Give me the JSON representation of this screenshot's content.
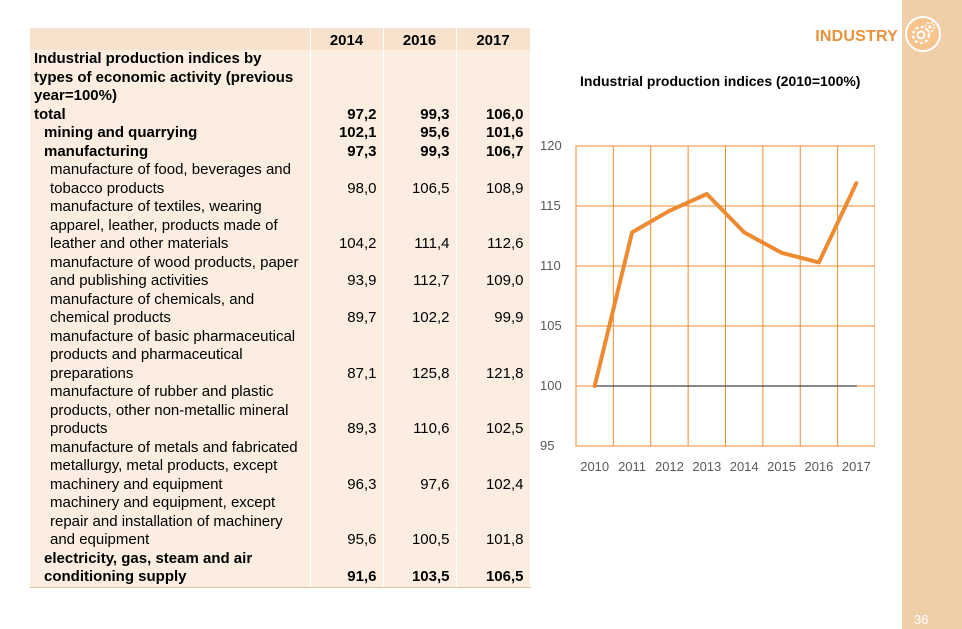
{
  "header": {
    "section_label": "INDUSTRY",
    "page_number": "36"
  },
  "icons": {
    "section_icon": "gear-icon"
  },
  "colors": {
    "accent": "#ed8b33",
    "sideband": "#f0cfa8",
    "table_bg": "#fbeee0",
    "baseline": "#404040"
  },
  "table": {
    "columns": [
      "",
      "2014",
      "2016",
      "2017"
    ],
    "heading": "Industrial production indices by types of economic activity (previous year=100%)",
    "rows": [
      {
        "label": "total",
        "values": [
          "97,2",
          "99,3",
          "106,0"
        ],
        "bold": true
      },
      {
        "label": "mining and quarrying",
        "values": [
          "102,1",
          "95,6",
          "101,6"
        ],
        "bold": true
      },
      {
        "label": "manufacturing",
        "values": [
          "97,3",
          "99,3",
          "106,7"
        ],
        "bold": true
      },
      {
        "label": "manufacture of food, beverages and tobacco products",
        "values": [
          "98,0",
          "106,5",
          "108,9"
        ],
        "bold": false
      },
      {
        "label": "manufacture of textiles, wearing apparel, leather, products made of leather and other materials",
        "values": [
          "104,2",
          "111,4",
          "112,6"
        ],
        "bold": false
      },
      {
        "label": "manufacture of wood products, paper and publishing activities",
        "values": [
          "93,9",
          "112,7",
          "109,0"
        ],
        "bold": false
      },
      {
        "label": "manufacture of chemicals, and chemical products",
        "values": [
          "89,7",
          "102,2",
          "99,9"
        ],
        "bold": false
      },
      {
        "label": "manufacture of basic pharmaceutical products  and pharmaceutical preparations",
        "values": [
          "87,1",
          "125,8",
          "121,8"
        ],
        "bold": false
      },
      {
        "label": "manufacture of rubber and plastic products, other non-metallic mineral products",
        "values": [
          "89,3",
          "110,6",
          "102,5"
        ],
        "bold": false
      },
      {
        "label": "manufacture of  metals and fabricated metallurgy, metal products, except machinery and equipment",
        "values": [
          "96,3",
          "97,6",
          "102,4"
        ],
        "bold": false
      },
      {
        "label": "machinery and equipment, except repair and installation of machinery and equipment",
        "values": [
          "95,6",
          "100,5",
          "101,8"
        ],
        "bold": false
      },
      {
        "label": "electricity, gas, steam and air conditioning supply",
        "values": [
          "91,6",
          "103,5",
          "106,5"
        ],
        "bold": true
      }
    ]
  },
  "chart_data": {
    "type": "line",
    "title": "Industrial production indices (2010=100%)",
    "categories": [
      "2010",
      "2011",
      "2012",
      "2013",
      "2014",
      "2015",
      "2016",
      "2017"
    ],
    "series": [
      {
        "values": [
          100,
          112.8,
          114.6,
          116,
          112.8,
          111.1,
          110.3,
          116.9
        ],
        "color": "#ed8b33"
      },
      {
        "values": [
          100,
          100,
          100,
          100,
          100,
          100,
          100,
          100
        ],
        "color": "#404040"
      }
    ],
    "ylim": [
      95,
      120
    ],
    "yticks": [
      95,
      100,
      105,
      110,
      115,
      120
    ],
    "grid": true
  }
}
